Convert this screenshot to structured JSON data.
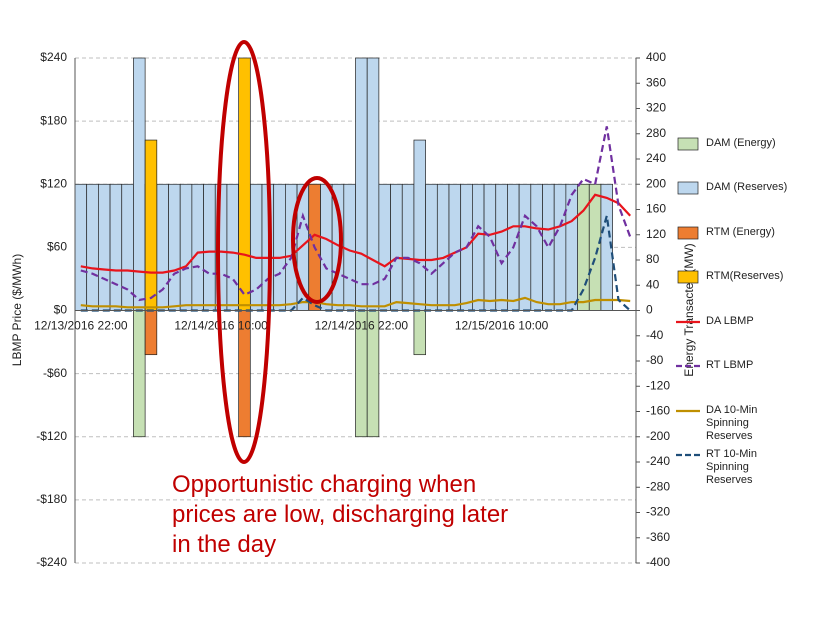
{
  "chart_data": {
    "type": "bar",
    "y_label": "LBMP Price ($/MWh)",
    "y2_label": "Energy Transacted (MW)",
    "annotation": "Opportunistic charging when prices are low, discharging later in the day",
    "categories": [
      "12/13/2016 22:00",
      null,
      null,
      null,
      null,
      null,
      null,
      null,
      null,
      null,
      null,
      null,
      "12/14/2016 10:00",
      null,
      null,
      null,
      null,
      null,
      null,
      null,
      null,
      null,
      null,
      null,
      "12/14/2016 22:00",
      null,
      null,
      null,
      null,
      null,
      null,
      null,
      null,
      null,
      null,
      null,
      "12/15/2016 10:00",
      null,
      null,
      null,
      null,
      null,
      null,
      null,
      null,
      null,
      null,
      null
    ],
    "ylim": [
      -240,
      240
    ],
    "yticks": [
      {
        "value": -240,
        "label": "-$240"
      },
      {
        "value": -180,
        "label": "-$180"
      },
      {
        "value": -120,
        "label": "-$120"
      },
      {
        "value": -60,
        "label": "-$60"
      },
      {
        "value": 0,
        "label": "$0"
      },
      {
        "value": 60,
        "label": "$60"
      },
      {
        "value": 120,
        "label": "$120"
      },
      {
        "value": 180,
        "label": "$180"
      },
      {
        "value": 240,
        "label": "$240"
      }
    ],
    "y2lim": [
      -400,
      400
    ],
    "y2ticks": [
      -400,
      -360,
      -320,
      -280,
      -240,
      -200,
      -160,
      -120,
      -80,
      -40,
      0,
      40,
      80,
      120,
      160,
      200,
      240,
      280,
      320,
      360,
      400
    ],
    "grid": true,
    "series": [
      {
        "name": "DAM (Energy)",
        "type": "bar",
        "axis": "y2",
        "color": "#c6e0b4",
        "values": [
          null,
          null,
          null,
          null,
          null,
          -200,
          null,
          null,
          null,
          null,
          null,
          null,
          null,
          null,
          null,
          null,
          null,
          null,
          null,
          160,
          null,
          null,
          null,
          null,
          -200,
          -200,
          null,
          null,
          null,
          -70,
          null,
          null,
          null,
          null,
          null,
          null,
          null,
          null,
          null,
          null,
          null,
          null,
          null,
          200,
          200,
          null,
          null,
          null
        ]
      },
      {
        "name": "DAM (Reserves)",
        "type": "bar",
        "axis": "y2",
        "color": "#bdd7ee",
        "values": [
          200,
          200,
          200,
          200,
          200,
          400,
          200,
          200,
          200,
          200,
          200,
          200,
          200,
          200,
          200,
          200,
          200,
          200,
          200,
          200,
          200,
          200,
          200,
          200,
          400,
          400,
          200,
          200,
          200,
          270,
          200,
          200,
          200,
          200,
          200,
          200,
          200,
          200,
          200,
          200,
          200,
          200,
          200,
          null,
          null,
          200,
          null,
          null
        ]
      },
      {
        "name": "RTM (Energy)",
        "type": "bar",
        "axis": "y2",
        "color": "#ed7d31",
        "values": [
          null,
          null,
          null,
          null,
          null,
          null,
          -70,
          null,
          null,
          null,
          null,
          null,
          null,
          null,
          -200,
          null,
          null,
          null,
          null,
          null,
          200,
          null,
          null,
          null,
          null,
          null,
          null,
          null,
          null,
          null,
          null,
          null,
          null,
          null,
          null,
          null,
          null,
          null,
          null,
          null,
          null,
          null,
          null,
          null,
          null,
          null,
          null,
          null
        ]
      },
      {
        "name": "RTM(Reserves)",
        "type": "bar",
        "axis": "y2",
        "color": "#ffc000",
        "values": [
          null,
          null,
          null,
          null,
          null,
          null,
          270,
          null,
          null,
          null,
          null,
          null,
          null,
          null,
          400,
          null,
          null,
          null,
          null,
          null,
          null,
          null,
          null,
          null,
          null,
          null,
          null,
          null,
          null,
          null,
          null,
          null,
          null,
          null,
          null,
          null,
          null,
          null,
          null,
          null,
          null,
          null,
          null,
          null,
          null,
          null,
          null,
          null
        ]
      },
      {
        "name": "DA LBMP",
        "type": "line",
        "color": "#e8141c",
        "dashed": false,
        "values": [
          42,
          40,
          39,
          38,
          38,
          37,
          36,
          36,
          38,
          42,
          55,
          56,
          56,
          55,
          53,
          50,
          50,
          50,
          52,
          62,
          72,
          68,
          62,
          57,
          54,
          48,
          42,
          50,
          49,
          48,
          48,
          50,
          55,
          60,
          73,
          72,
          75,
          80,
          80,
          78,
          77,
          80,
          85,
          95,
          110,
          107,
          102,
          90
        ]
      },
      {
        "name": "RT LBMP",
        "type": "line",
        "color": "#7030a0",
        "dashed": true,
        "values": [
          38,
          35,
          30,
          25,
          20,
          10,
          12,
          20,
          35,
          40,
          42,
          35,
          35,
          30,
          15,
          20,
          30,
          35,
          50,
          90,
          60,
          40,
          35,
          30,
          25,
          25,
          30,
          50,
          50,
          45,
          35,
          45,
          55,
          60,
          80,
          70,
          45,
          60,
          90,
          80,
          60,
          80,
          110,
          125,
          120,
          175,
          100,
          70
        ]
      },
      {
        "name": "DA 10-Min Spinning Reserves",
        "type": "line",
        "color": "#bf8f00",
        "dashed": false,
        "values": [
          5,
          4,
          4,
          4,
          3,
          3,
          3,
          3,
          4,
          5,
          5,
          5,
          5,
          5,
          5,
          5,
          5,
          5,
          6,
          8,
          8,
          6,
          5,
          5,
          4,
          4,
          4,
          8,
          7,
          6,
          5,
          5,
          5,
          7,
          10,
          9,
          10,
          9,
          12,
          8,
          6,
          6,
          8,
          8,
          10,
          10,
          10,
          9
        ]
      },
      {
        "name": "RT 10-Min Spinning Reserves",
        "type": "line",
        "color": "#1f4e79",
        "dashed": true,
        "values": [
          0,
          0,
          0,
          0,
          0,
          0,
          0,
          0,
          0,
          0,
          0,
          0,
          0,
          0,
          0,
          0,
          0,
          0,
          0,
          12,
          5,
          0,
          0,
          0,
          0,
          0,
          0,
          0,
          0,
          0,
          0,
          0,
          0,
          0,
          0,
          0,
          0,
          0,
          0,
          0,
          0,
          0,
          0,
          20,
          50,
          90,
          10,
          0
        ]
      }
    ]
  }
}
